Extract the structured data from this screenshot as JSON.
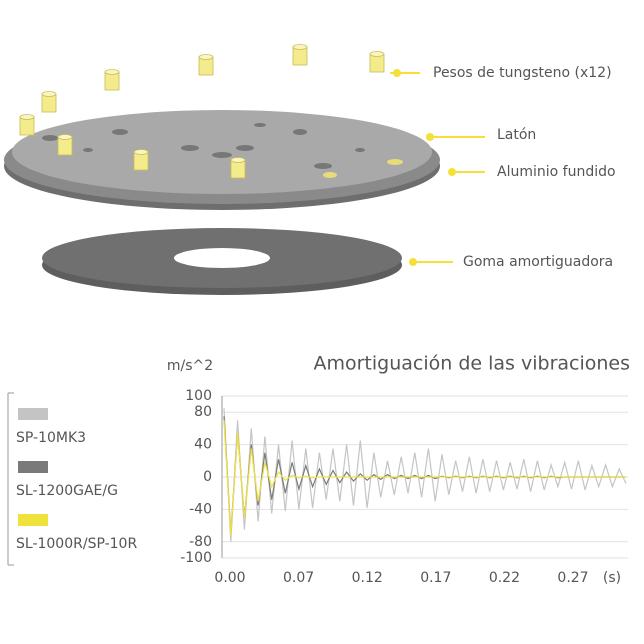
{
  "diagram": {
    "labels": [
      "Pesos de tungsteno (x12)",
      "Latón",
      "Aluminio fundido",
      "Goma amortiguadora"
    ]
  },
  "chart_data": {
    "type": "line",
    "title": "Amortiguación de las vibraciones",
    "y_unit": "m/s^2",
    "x_unit": "(s)",
    "ylim": [
      -100,
      100
    ],
    "yticks": [
      100,
      80,
      40,
      0,
      -40,
      -80,
      -100
    ],
    "x_tick_labels": [
      "0.00",
      "0.07",
      "0.12",
      "0.17",
      "0.22",
      "0.27"
    ],
    "series": [
      {
        "name": "SP-10MK3",
        "color": "#c4c4c4",
        "values": [
          85,
          -80,
          70,
          -65,
          60,
          -55,
          50,
          -45,
          40,
          -42,
          45,
          -40,
          35,
          -38,
          30,
          -28,
          35,
          -30,
          40,
          -35,
          45,
          -38,
          30,
          -25,
          20,
          -22,
          25,
          -20,
          30,
          -25,
          35,
          -30,
          28,
          -22,
          20,
          -18,
          25,
          -20,
          22,
          -18,
          20,
          -16,
          18,
          -15,
          22,
          -18,
          20,
          -16,
          15,
          -12,
          18,
          -15,
          20,
          -16,
          14,
          -12,
          15,
          -12,
          10,
          -8
        ]
      },
      {
        "name": "SL-1200GAE/G",
        "color": "#7a7a7a",
        "values": [
          75,
          -70,
          55,
          -50,
          40,
          -35,
          30,
          -28,
          22,
          -20,
          18,
          -15,
          14,
          -12,
          10,
          -9,
          8,
          -7,
          6,
          -5,
          4,
          -4,
          3,
          -3,
          3,
          -2,
          2,
          -2,
          2,
          -2,
          2,
          -2,
          1,
          -1,
          1,
          -1,
          1,
          -1,
          1,
          -1,
          1,
          -1,
          1,
          -1,
          1,
          -1,
          1,
          -1,
          1,
          -1,
          0,
          0,
          0,
          0,
          0,
          0,
          0,
          0,
          0,
          0
        ]
      },
      {
        "name": "SL-1000R/SP-10R",
        "color": "#f0e23c",
        "values": [
          70,
          -72,
          55,
          -50,
          35,
          -30,
          18,
          -12,
          6,
          -4,
          2,
          -1,
          1,
          -1,
          0,
          0,
          0,
          0,
          0,
          0,
          0,
          0,
          0,
          0,
          0,
          0,
          0,
          0,
          0,
          0,
          0,
          0,
          0,
          0,
          0,
          0,
          0,
          0,
          0,
          0,
          0,
          0,
          0,
          0,
          0,
          0,
          0,
          0,
          0,
          0,
          0,
          0,
          0,
          0,
          0,
          0,
          0,
          0,
          0,
          0
        ]
      }
    ]
  }
}
